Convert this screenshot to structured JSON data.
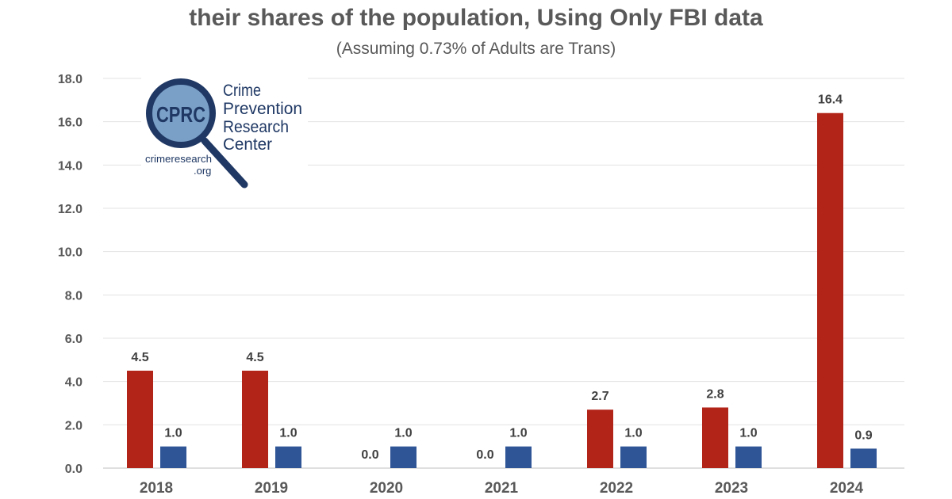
{
  "chart_data": {
    "type": "bar",
    "title": "their shares of the population, Using Only FBI data",
    "subtitle": "(Assuming 0.73% of Adults are Trans)",
    "categories": [
      "2018",
      "2019",
      "2020",
      "2021",
      "2022",
      "2023",
      "2024"
    ],
    "series": [
      {
        "values": [
          4.5,
          4.5,
          0.0,
          0.0,
          2.7,
          2.8,
          16.4
        ],
        "color": "#b22418"
      },
      {
        "values": [
          1.0,
          1.0,
          1.0,
          1.0,
          1.0,
          1.0,
          0.9
        ],
        "color": "#2f5597"
      }
    ],
    "ylim": [
      0,
      18
    ],
    "yticks": [
      "0.0",
      "2.0",
      "4.0",
      "6.0",
      "8.0",
      "10.0",
      "12.0",
      "14.0",
      "16.0",
      "18.0"
    ],
    "grid": true,
    "legend": "none"
  },
  "logo": {
    "acronym": "CPRC",
    "name_lines": [
      "Crime",
      "Prevention",
      "Research",
      "Center"
    ],
    "url_lines": [
      "crimeresearch",
      ".org"
    ]
  }
}
